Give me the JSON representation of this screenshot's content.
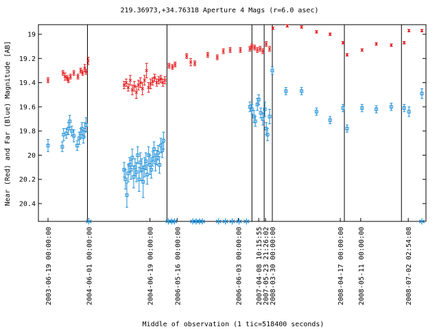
{
  "chart_data": {
    "type": "scatter",
    "title": "219.36973,+34.76318   Aperture 4 Mags (r=6.0 asec)",
    "xlabel": "Middle of observation (1 tic=518400 seconds)",
    "ylabel": "Near (Red) and Far (Blue) Magnitude [AB]",
    "y_reversed": true,
    "ylim": [
      18.9,
      20.55
    ],
    "y_ticks": [
      19,
      19.2,
      19.4,
      19.6,
      19.8,
      20,
      20.2,
      20.4
    ],
    "y_tick_labels": [
      "19",
      "19.2",
      "19.4",
      "19.6",
      "19.8",
      "20",
      "20.2",
      "20.4"
    ],
    "x_index_range": [
      0,
      55
    ],
    "date_ticks": [
      {
        "x": 0,
        "label": "2003-06-19 00:00:00"
      },
      {
        "x": 6,
        "label": "2004-06-01 00:00:00"
      },
      {
        "x": 15,
        "label": "2004-06-19 00:00:00"
      },
      {
        "x": 19,
        "label": "2006-05-16 00:00:00"
      },
      {
        "x": 28,
        "label": "2006-06-03 00:00:00"
      },
      {
        "x": 31,
        "label": "2007-04-08 10:15:55"
      },
      {
        "x": 32,
        "label": "2007-05-23 21:26:02"
      },
      {
        "x": 33,
        "label": "2008-03-30 00:00:00"
      },
      {
        "x": 43,
        "label": "2008-04-17 00:00:00"
      },
      {
        "x": 46,
        "label": "2008-05-11 00:00:00"
      },
      {
        "x": 53,
        "label": "2008-07-02 02:54:08"
      }
    ],
    "season_breaks": [
      5.8,
      17.5,
      30.0,
      31.8,
      33.0,
      43.6,
      52.0
    ],
    "markers": [
      6,
      17.7,
      18.2,
      18.6,
      21.3,
      21.8,
      22.3,
      22.7,
      25.1,
      26.1,
      27.1,
      28.1,
      29.2,
      55
    ],
    "series": [
      {
        "name": "Near (Red)",
        "color": "#e41a1c",
        "marker": "x",
        "points": [
          [
            0,
            19.38,
            0.02
          ],
          [
            2.2,
            19.32,
            0.02
          ],
          [
            2.5,
            19.35,
            0.03
          ],
          [
            2.8,
            19.36,
            0.02
          ],
          [
            3.0,
            19.38,
            0.02
          ],
          [
            3.3,
            19.35,
            0.02
          ],
          [
            3.8,
            19.32,
            0.02
          ],
          [
            4.4,
            19.35,
            0.02
          ],
          [
            4.8,
            19.3,
            0.02
          ],
          [
            5.1,
            19.32,
            0.02
          ],
          [
            5.4,
            19.28,
            0.03
          ],
          [
            5.6,
            19.31,
            0.02
          ],
          [
            5.9,
            19.22,
            0.03
          ],
          [
            11.2,
            19.42,
            0.03
          ],
          [
            11.5,
            19.4,
            0.03
          ],
          [
            11.8,
            19.44,
            0.03
          ],
          [
            12.1,
            19.38,
            0.04
          ],
          [
            12.4,
            19.46,
            0.04
          ],
          [
            12.7,
            19.43,
            0.04
          ],
          [
            13.0,
            19.48,
            0.05
          ],
          [
            13.3,
            19.42,
            0.04
          ],
          [
            13.6,
            19.4,
            0.04
          ],
          [
            13.9,
            19.45,
            0.05
          ],
          [
            14.2,
            19.38,
            0.04
          ],
          [
            14.5,
            19.3,
            0.06
          ],
          [
            14.8,
            19.44,
            0.04
          ],
          [
            15.1,
            19.41,
            0.04
          ],
          [
            15.4,
            19.39,
            0.03
          ],
          [
            15.7,
            19.36,
            0.03
          ],
          [
            16.0,
            19.4,
            0.03
          ],
          [
            16.3,
            19.38,
            0.03
          ],
          [
            16.6,
            19.37,
            0.03
          ],
          [
            16.9,
            19.4,
            0.03
          ],
          [
            17.2,
            19.38,
            0.03
          ],
          [
            17.8,
            19.26,
            0.02
          ],
          [
            18.3,
            19.27,
            0.02
          ],
          [
            18.7,
            19.25,
            0.02
          ],
          [
            20.4,
            19.18,
            0.02
          ],
          [
            21.0,
            19.23,
            0.03
          ],
          [
            21.6,
            19.24,
            0.02
          ],
          [
            23.5,
            19.17,
            0.02
          ],
          [
            24.9,
            19.19,
            0.02
          ],
          [
            25.8,
            19.14,
            0.02
          ],
          [
            26.8,
            19.13,
            0.02
          ],
          [
            28.3,
            19.13,
            0.02
          ],
          [
            29.7,
            19.12,
            0.02
          ],
          [
            30.0,
            19.1,
            0.02
          ],
          [
            30.4,
            19.11,
            0.02
          ],
          [
            30.8,
            19.13,
            0.02
          ],
          [
            31.2,
            19.12,
            0.02
          ],
          [
            31.6,
            19.14,
            0.02
          ],
          [
            32.1,
            19.08,
            0.02
          ],
          [
            32.6,
            19.12,
            0.02
          ],
          [
            33.1,
            18.95,
            0.01
          ],
          [
            35.2,
            18.93,
            0.01
          ],
          [
            37.3,
            18.94,
            0.01
          ],
          [
            39.5,
            18.98,
            0.01
          ],
          [
            41.5,
            19.0,
            0.01
          ],
          [
            43.4,
            19.07,
            0.01
          ],
          [
            44.0,
            19.17,
            0.01
          ],
          [
            46.2,
            19.13,
            0.01
          ],
          [
            48.3,
            19.08,
            0.01
          ],
          [
            50.5,
            19.09,
            0.01
          ],
          [
            52.4,
            19.07,
            0.01
          ],
          [
            53.1,
            18.97,
            0.01
          ],
          [
            55.0,
            18.97,
            0.01
          ]
        ]
      },
      {
        "name": "Far (Blue)",
        "color": "#1e8fd8",
        "marker": "square",
        "points": [
          [
            0,
            19.92,
            0.05
          ],
          [
            2.1,
            19.93,
            0.04
          ],
          [
            2.3,
            19.83,
            0.05
          ],
          [
            2.7,
            19.82,
            0.04
          ],
          [
            3.0,
            19.78,
            0.05
          ],
          [
            3.2,
            19.72,
            0.05
          ],
          [
            3.5,
            19.8,
            0.04
          ],
          [
            3.8,
            19.84,
            0.05
          ],
          [
            4.3,
            19.92,
            0.04
          ],
          [
            4.6,
            19.86,
            0.05
          ],
          [
            4.8,
            19.82,
            0.04
          ],
          [
            5.0,
            19.78,
            0.05
          ],
          [
            5.2,
            19.85,
            0.05
          ],
          [
            5.4,
            19.79,
            0.06
          ],
          [
            5.6,
            19.75,
            0.06
          ],
          [
            11.2,
            20.12,
            0.06
          ],
          [
            11.4,
            20.2,
            0.08
          ],
          [
            11.6,
            20.33,
            0.1
          ],
          [
            11.8,
            20.15,
            0.07
          ],
          [
            12.0,
            20.08,
            0.06
          ],
          [
            12.2,
            20.12,
            0.08
          ],
          [
            12.4,
            20.02,
            0.07
          ],
          [
            12.6,
            20.18,
            0.09
          ],
          [
            12.8,
            20.1,
            0.07
          ],
          [
            13.0,
            20.14,
            0.08
          ],
          [
            13.2,
            20.0,
            0.07
          ],
          [
            13.4,
            20.2,
            0.1
          ],
          [
            13.6,
            20.06,
            0.08
          ],
          [
            13.8,
            20.12,
            0.09
          ],
          [
            14.0,
            20.22,
            0.13
          ],
          [
            14.2,
            20.1,
            0.08
          ],
          [
            14.4,
            20.05,
            0.07
          ],
          [
            14.6,
            20.16,
            0.08
          ],
          [
            14.8,
            20.0,
            0.07
          ],
          [
            15.0,
            20.08,
            0.08
          ],
          [
            15.2,
            20.12,
            0.07
          ],
          [
            15.4,
            20.03,
            0.06
          ],
          [
            15.6,
            19.95,
            0.06
          ],
          [
            15.8,
            20.06,
            0.07
          ],
          [
            16.0,
            20.02,
            0.06
          ],
          [
            16.2,
            19.98,
            0.06
          ],
          [
            16.4,
            20.08,
            0.07
          ],
          [
            16.6,
            19.92,
            0.06
          ],
          [
            16.8,
            19.96,
            0.06
          ],
          [
            17.0,
            19.88,
            0.07
          ],
          [
            29.7,
            19.6,
            0.04
          ],
          [
            30.0,
            19.62,
            0.04
          ],
          [
            30.3,
            19.68,
            0.05
          ],
          [
            30.5,
            19.72,
            0.04
          ],
          [
            30.8,
            19.58,
            0.05
          ],
          [
            31.0,
            19.54,
            0.04
          ],
          [
            31.3,
            19.65,
            0.04
          ],
          [
            31.6,
            19.7,
            0.05
          ],
          [
            31.9,
            19.62,
            0.06
          ],
          [
            32.1,
            19.78,
            0.05
          ],
          [
            32.3,
            19.83,
            0.05
          ],
          [
            32.6,
            19.68,
            0.06
          ],
          [
            33.0,
            19.3,
            0.03
          ],
          [
            35.0,
            19.47,
            0.03
          ],
          [
            37.3,
            19.47,
            0.03
          ],
          [
            39.5,
            19.64,
            0.03
          ],
          [
            41.5,
            19.71,
            0.03
          ],
          [
            43.4,
            19.61,
            0.03
          ],
          [
            44.0,
            19.78,
            0.03
          ],
          [
            46.2,
            19.61,
            0.03
          ],
          [
            48.3,
            19.62,
            0.03
          ],
          [
            50.5,
            19.6,
            0.03
          ],
          [
            52.4,
            19.61,
            0.03
          ],
          [
            53.1,
            19.64,
            0.04
          ],
          [
            55.0,
            19.49,
            0.04
          ]
        ]
      }
    ]
  }
}
